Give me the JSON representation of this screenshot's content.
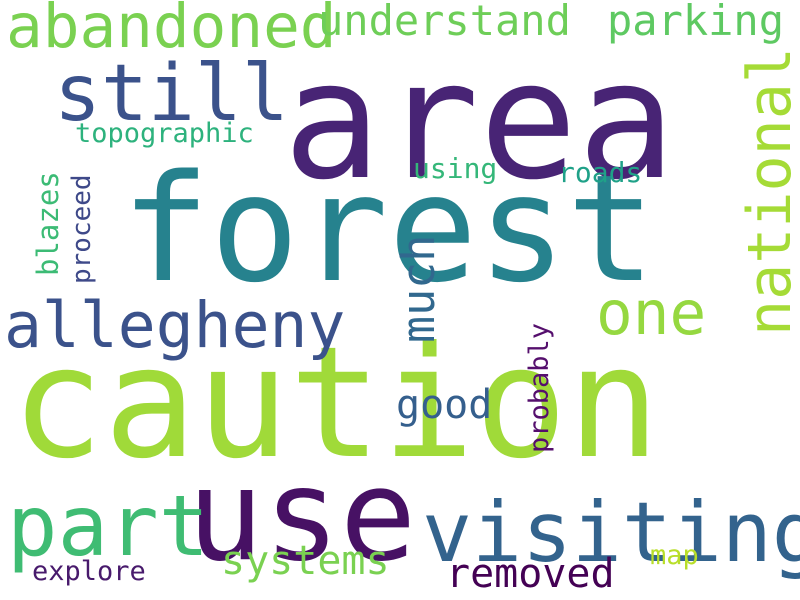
{
  "words": {
    "area": {
      "text": "area",
      "color": "#482475"
    },
    "forest": {
      "text": "forest",
      "color": "#26828e"
    },
    "caution": {
      "text": "caution",
      "color": "#a0da39"
    },
    "use": {
      "text": "use",
      "color": "#471164"
    },
    "visiting": {
      "text": "visiting",
      "color": "#33638d"
    },
    "part": {
      "text": "part",
      "color": "#3fbc73"
    },
    "allegheny": {
      "text": "allegheny",
      "color": "#3b528b"
    },
    "still": {
      "text": "still",
      "color": "#3b528b"
    },
    "abandoned": {
      "text": "abandoned",
      "color": "#7ad151"
    },
    "understand": {
      "text": "understand",
      "color": "#6ece58"
    },
    "parking": {
      "text": "parking",
      "color": "#5ec962"
    },
    "national": {
      "text": "national",
      "color": "#a5db36"
    },
    "one": {
      "text": "one",
      "color": "#95d840"
    },
    "much": {
      "text": "much",
      "color": "#31688e"
    },
    "systems": {
      "text": "systems",
      "color": "#7ad151"
    },
    "removed": {
      "text": "removed",
      "color": "#440154"
    },
    "good": {
      "text": "good",
      "color": "#355f8d"
    },
    "probably": {
      "text": "probably",
      "color": "#550f6d"
    },
    "topographic": {
      "text": "topographic",
      "color": "#2db27d"
    },
    "blazes": {
      "text": "blazes",
      "color": "#3cbb75"
    },
    "proceed": {
      "text": "proceed",
      "color": "#3e4989"
    },
    "using": {
      "text": "using",
      "color": "#35b779"
    },
    "roads": {
      "text": "roads",
      "color": "#1fa188"
    },
    "explore": {
      "text": "explore",
      "color": "#481a6c"
    },
    "map": {
      "text": "map",
      "color": "#b8de29"
    }
  }
}
